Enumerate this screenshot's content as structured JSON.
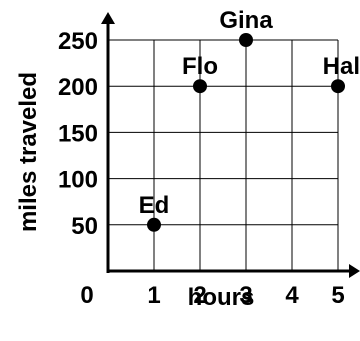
{
  "chart_data": {
    "type": "scatter",
    "xlabel": "hours",
    "ylabel": "miles traveled",
    "xlim": [
      0,
      5
    ],
    "ylim": [
      0,
      250
    ],
    "x_ticks": [
      0,
      1,
      2,
      3,
      4,
      5
    ],
    "y_ticks": [
      50,
      100,
      150,
      200,
      250
    ],
    "grid": true,
    "points": [
      {
        "label": "Ed",
        "x": 1,
        "y": 50
      },
      {
        "label": "Flo",
        "x": 2,
        "y": 200
      },
      {
        "label": "Gina",
        "x": 3,
        "y": 250
      },
      {
        "label": "Hal",
        "x": 5,
        "y": 200
      }
    ]
  }
}
